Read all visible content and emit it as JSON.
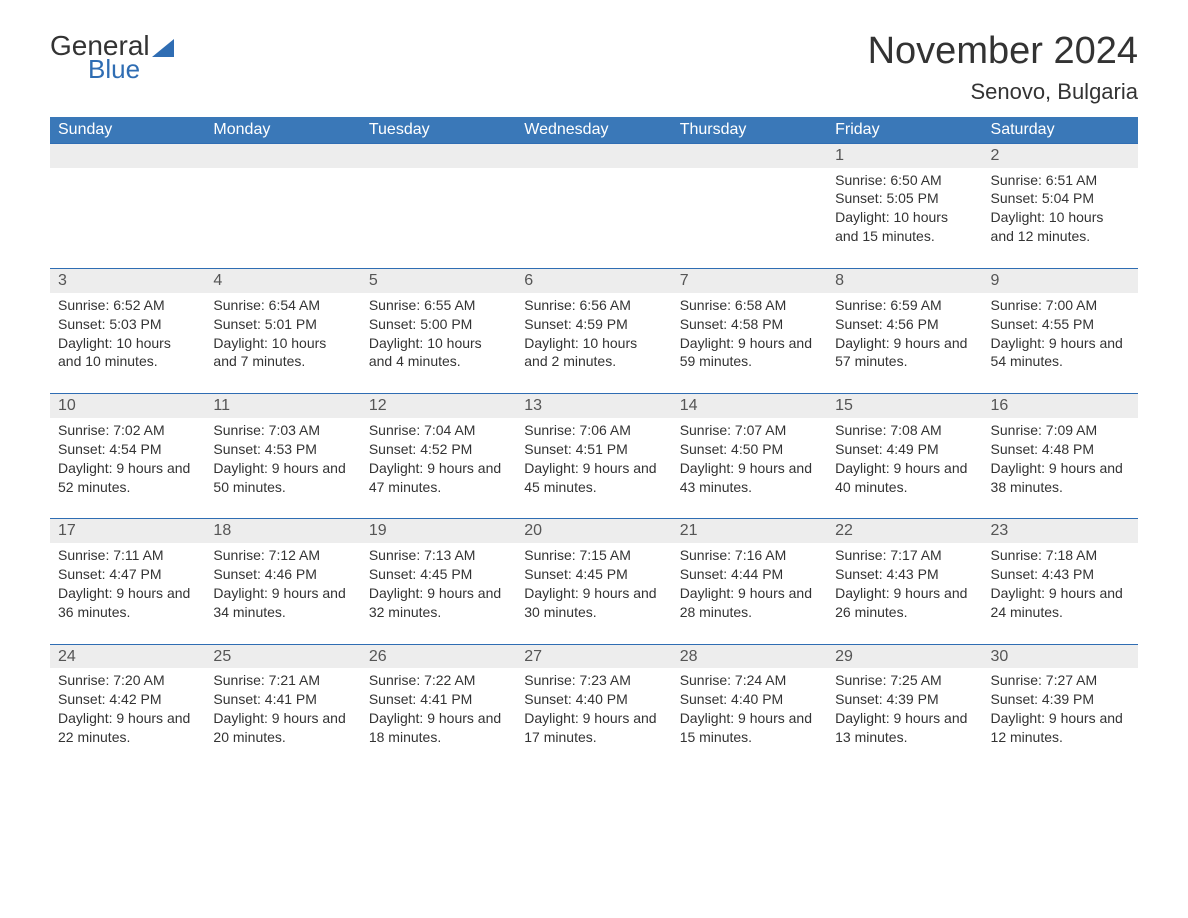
{
  "brand": {
    "text1": "General",
    "text2": "Blue",
    "logo_color": "#2f6db3",
    "text_color": "#333333"
  },
  "title": "November 2024",
  "location": "Senovo, Bulgaria",
  "colors": {
    "header_bg": "#3a78b8",
    "header_fg": "#ffffff",
    "daynum_bg": "#ededed",
    "daynum_border": "#2f6db3",
    "body_text": "#333333",
    "background": "#ffffff"
  },
  "typography": {
    "title_fontsize": 38,
    "location_fontsize": 22,
    "header_fontsize": 16,
    "daynum_fontsize": 16,
    "body_fontsize": 14
  },
  "week_header": [
    "Sunday",
    "Monday",
    "Tuesday",
    "Wednesday",
    "Thursday",
    "Friday",
    "Saturday"
  ],
  "weeks": [
    [
      null,
      null,
      null,
      null,
      null,
      {
        "num": "1",
        "sunrise": "6:50 AM",
        "sunset": "5:05 PM",
        "daylight": "10 hours and 15 minutes."
      },
      {
        "num": "2",
        "sunrise": "6:51 AM",
        "sunset": "5:04 PM",
        "daylight": "10 hours and 12 minutes."
      }
    ],
    [
      {
        "num": "3",
        "sunrise": "6:52 AM",
        "sunset": "5:03 PM",
        "daylight": "10 hours and 10 minutes."
      },
      {
        "num": "4",
        "sunrise": "6:54 AM",
        "sunset": "5:01 PM",
        "daylight": "10 hours and 7 minutes."
      },
      {
        "num": "5",
        "sunrise": "6:55 AM",
        "sunset": "5:00 PM",
        "daylight": "10 hours and 4 minutes."
      },
      {
        "num": "6",
        "sunrise": "6:56 AM",
        "sunset": "4:59 PM",
        "daylight": "10 hours and 2 minutes."
      },
      {
        "num": "7",
        "sunrise": "6:58 AM",
        "sunset": "4:58 PM",
        "daylight": "9 hours and 59 minutes."
      },
      {
        "num": "8",
        "sunrise": "6:59 AM",
        "sunset": "4:56 PM",
        "daylight": "9 hours and 57 minutes."
      },
      {
        "num": "9",
        "sunrise": "7:00 AM",
        "sunset": "4:55 PM",
        "daylight": "9 hours and 54 minutes."
      }
    ],
    [
      {
        "num": "10",
        "sunrise": "7:02 AM",
        "sunset": "4:54 PM",
        "daylight": "9 hours and 52 minutes."
      },
      {
        "num": "11",
        "sunrise": "7:03 AM",
        "sunset": "4:53 PM",
        "daylight": "9 hours and 50 minutes."
      },
      {
        "num": "12",
        "sunrise": "7:04 AM",
        "sunset": "4:52 PM",
        "daylight": "9 hours and 47 minutes."
      },
      {
        "num": "13",
        "sunrise": "7:06 AM",
        "sunset": "4:51 PM",
        "daylight": "9 hours and 45 minutes."
      },
      {
        "num": "14",
        "sunrise": "7:07 AM",
        "sunset": "4:50 PM",
        "daylight": "9 hours and 43 minutes."
      },
      {
        "num": "15",
        "sunrise": "7:08 AM",
        "sunset": "4:49 PM",
        "daylight": "9 hours and 40 minutes."
      },
      {
        "num": "16",
        "sunrise": "7:09 AM",
        "sunset": "4:48 PM",
        "daylight": "9 hours and 38 minutes."
      }
    ],
    [
      {
        "num": "17",
        "sunrise": "7:11 AM",
        "sunset": "4:47 PM",
        "daylight": "9 hours and 36 minutes."
      },
      {
        "num": "18",
        "sunrise": "7:12 AM",
        "sunset": "4:46 PM",
        "daylight": "9 hours and 34 minutes."
      },
      {
        "num": "19",
        "sunrise": "7:13 AM",
        "sunset": "4:45 PM",
        "daylight": "9 hours and 32 minutes."
      },
      {
        "num": "20",
        "sunrise": "7:15 AM",
        "sunset": "4:45 PM",
        "daylight": "9 hours and 30 minutes."
      },
      {
        "num": "21",
        "sunrise": "7:16 AM",
        "sunset": "4:44 PM",
        "daylight": "9 hours and 28 minutes."
      },
      {
        "num": "22",
        "sunrise": "7:17 AM",
        "sunset": "4:43 PM",
        "daylight": "9 hours and 26 minutes."
      },
      {
        "num": "23",
        "sunrise": "7:18 AM",
        "sunset": "4:43 PM",
        "daylight": "9 hours and 24 minutes."
      }
    ],
    [
      {
        "num": "24",
        "sunrise": "7:20 AM",
        "sunset": "4:42 PM",
        "daylight": "9 hours and 22 minutes."
      },
      {
        "num": "25",
        "sunrise": "7:21 AM",
        "sunset": "4:41 PM",
        "daylight": "9 hours and 20 minutes."
      },
      {
        "num": "26",
        "sunrise": "7:22 AM",
        "sunset": "4:41 PM",
        "daylight": "9 hours and 18 minutes."
      },
      {
        "num": "27",
        "sunrise": "7:23 AM",
        "sunset": "4:40 PM",
        "daylight": "9 hours and 17 minutes."
      },
      {
        "num": "28",
        "sunrise": "7:24 AM",
        "sunset": "4:40 PM",
        "daylight": "9 hours and 15 minutes."
      },
      {
        "num": "29",
        "sunrise": "7:25 AM",
        "sunset": "4:39 PM",
        "daylight": "9 hours and 13 minutes."
      },
      {
        "num": "30",
        "sunrise": "7:27 AM",
        "sunset": "4:39 PM",
        "daylight": "9 hours and 12 minutes."
      }
    ]
  ],
  "labels": {
    "sunrise": "Sunrise:",
    "sunset": "Sunset:",
    "daylight": "Daylight:"
  }
}
